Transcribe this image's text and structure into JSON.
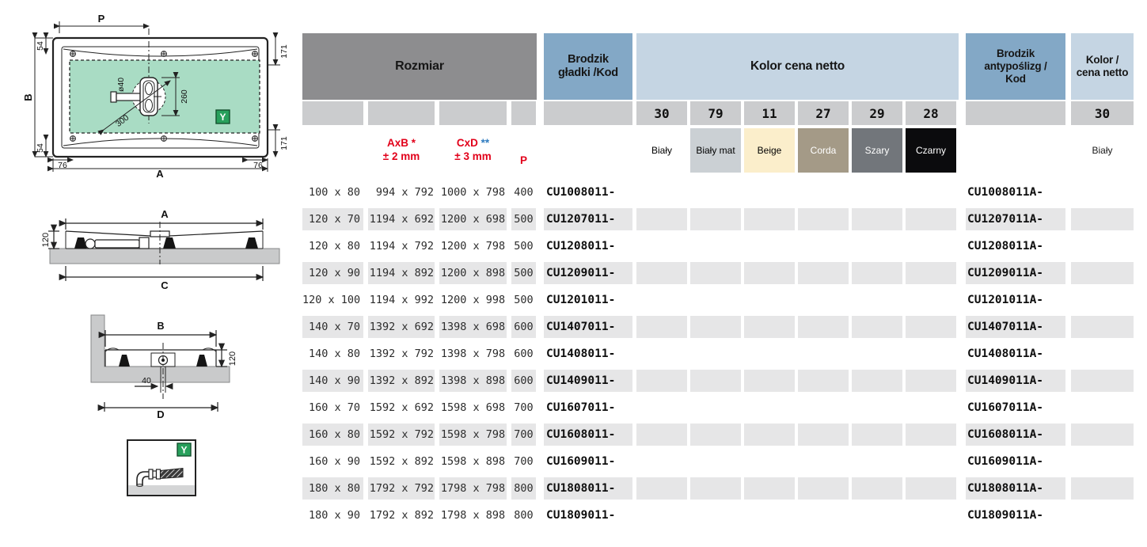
{
  "drawings": {
    "top_view": {
      "dim_p": "P",
      "dim_b": "B",
      "dim_a": "A",
      "dim_54_top": "54",
      "dim_54_bottom": "54",
      "dim_171_top": "171",
      "dim_171_bottom": "171",
      "dim_76_left": "76",
      "dim_76_right": "76",
      "dim_drain": "ø40",
      "dim_260": "260",
      "dim_300": "300",
      "y_badge": "Y"
    },
    "side_view": {
      "dim_a": "A",
      "dim_120": "120",
      "dim_c": "C"
    },
    "section_view": {
      "dim_b": "B",
      "dim_120": "120",
      "dim_40": "40",
      "dim_d": "D"
    },
    "detail": {
      "y_badge": "Y"
    }
  },
  "table": {
    "headers": {
      "rozmiar": "Rozmiar",
      "smooth_line1": "Brodzik",
      "smooth_line2": "gładki /Kod",
      "color_price": "Kolor cena netto",
      "anti_line1": "Brodzik",
      "anti_line2": "antypoślizg /",
      "anti_line3": "Kod",
      "color2_line1": "Kolor /",
      "color2_line2": "cena netto"
    },
    "subheaders": {
      "axb_label": "AxB *",
      "axb_tol": "± 2 mm",
      "cxd_label": "CxD ",
      "cxd_stars": "**",
      "cxd_tol": "± 3 mm",
      "p_label": "P"
    },
    "color_columns": [
      {
        "code": "30",
        "name": "Biały",
        "bg": "#ffffff",
        "fg": "#000000"
      },
      {
        "code": "79",
        "name": "Biały mat",
        "bg": "#cbd0d4",
        "fg": "#000000"
      },
      {
        "code": "11",
        "name": "Beige",
        "bg": "#fbeecb",
        "fg": "#000000"
      },
      {
        "code": "27",
        "name": "Corda",
        "bg": "#a49a87",
        "fg": "#ffffff"
      },
      {
        "code": "29",
        "name": "Szary",
        "bg": "#72767b",
        "fg": "#ffffff"
      },
      {
        "code": "28",
        "name": "Czarny",
        "bg": "#0b0b0d",
        "fg": "#ffffff"
      }
    ],
    "antislip_column": {
      "code": "30",
      "name": "Biały"
    },
    "rows": [
      {
        "size": "100 x 80",
        "axb": "994 x 792",
        "cxd": "1000 x 798",
        "p": "400",
        "code": "CU1008011-",
        "code_a": "CU1008011A-"
      },
      {
        "size": "120 x 70",
        "axb": "1194 x 692",
        "cxd": "1200 x 698",
        "p": "500",
        "code": "CU1207011-",
        "code_a": "CU1207011A-"
      },
      {
        "size": "120 x 80",
        "axb": "1194 x 792",
        "cxd": "1200 x 798",
        "p": "500",
        "code": "CU1208011-",
        "code_a": "CU1208011A-"
      },
      {
        "size": "120 x 90",
        "axb": "1194 x 892",
        "cxd": "1200 x 898",
        "p": "500",
        "code": "CU1209011-",
        "code_a": "CU1209011A-"
      },
      {
        "size": "120 x 100",
        "axb": "1194 x 992",
        "cxd": "1200 x 998",
        "p": "500",
        "code": "CU1201011-",
        "code_a": "CU1201011A-"
      },
      {
        "size": "140 x 70",
        "axb": "1392 x 692",
        "cxd": "1398 x 698",
        "p": "600",
        "code": "CU1407011-",
        "code_a": "CU1407011A-"
      },
      {
        "size": "140 x 80",
        "axb": "1392 x 792",
        "cxd": "1398 x 798",
        "p": "600",
        "code": "CU1408011-",
        "code_a": "CU1408011A-"
      },
      {
        "size": "140 x 90",
        "axb": "1392 x 892",
        "cxd": "1398 x 898",
        "p": "600",
        "code": "CU1409011-",
        "code_a": "CU1409011A-"
      },
      {
        "size": "160 x 70",
        "axb": "1592 x 692",
        "cxd": "1598 x 698",
        "p": "700",
        "code": "CU1607011-",
        "code_a": "CU1607011A-"
      },
      {
        "size": "160 x 80",
        "axb": "1592 x 792",
        "cxd": "1598 x 798",
        "p": "700",
        "code": "CU1608011-",
        "code_a": "CU1608011A-"
      },
      {
        "size": "160 x 90",
        "axb": "1592 x 892",
        "cxd": "1598 x 898",
        "p": "700",
        "code": "CU1609011-",
        "code_a": "CU1609011A-"
      },
      {
        "size": "180 x 80",
        "axb": "1792 x 792",
        "cxd": "1798 x 798",
        "p": "800",
        "code": "CU1808011-",
        "code_a": "CU1808011A-"
      },
      {
        "size": "180 x 90",
        "axb": "1792 x 892",
        "cxd": "1798 x 898",
        "p": "800",
        "code": "CU1809011-",
        "code_a": "CU1809011A-"
      }
    ]
  },
  "colors": {
    "accent_red": "#e2001a",
    "asterisk_blue": "#2f7cc0",
    "header_gray": "#8d8d8f",
    "header_blue": "#83a8c6",
    "header_light_blue": "#c5d5e3",
    "code_strip_gray": "#cbccce",
    "row_stripe_gray": "#e6e6e7",
    "drawing_green_area": "#a9dcc4",
    "y_badge_green": "#28a05c",
    "slab_gray": "#c9cacb"
  }
}
